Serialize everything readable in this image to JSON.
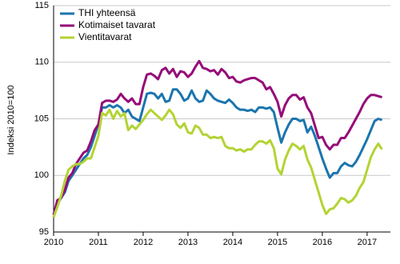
{
  "chart_data": {
    "type": "line",
    "ylabel": "Indeksi 2010=100",
    "x": [
      2010.0,
      2010.083,
      2010.167,
      2010.25,
      2010.333,
      2010.417,
      2010.5,
      2010.583,
      2010.667,
      2010.75,
      2010.833,
      2010.917,
      2011.0,
      2011.083,
      2011.167,
      2011.25,
      2011.333,
      2011.417,
      2011.5,
      2011.583,
      2011.667,
      2011.75,
      2011.833,
      2011.917,
      2012.0,
      2012.083,
      2012.167,
      2012.25,
      2012.333,
      2012.417,
      2012.5,
      2012.583,
      2012.667,
      2012.75,
      2012.833,
      2012.917,
      2013.0,
      2013.083,
      2013.167,
      2013.25,
      2013.333,
      2013.417,
      2013.5,
      2013.583,
      2013.667,
      2013.75,
      2013.833,
      2013.917,
      2014.0,
      2014.083,
      2014.167,
      2014.25,
      2014.333,
      2014.417,
      2014.5,
      2014.583,
      2014.667,
      2014.75,
      2014.833,
      2014.917,
      2015.0,
      2015.083,
      2015.167,
      2015.25,
      2015.333,
      2015.417,
      2015.5,
      2015.583,
      2015.667,
      2015.75,
      2015.833,
      2015.917,
      2016.0,
      2016.083,
      2016.167,
      2016.25,
      2016.333,
      2016.417,
      2016.5,
      2016.583,
      2016.667,
      2016.75,
      2016.833,
      2016.917,
      2017.0,
      2017.083,
      2017.167,
      2017.25,
      2017.333
    ],
    "series": [
      {
        "name": "THI yhteensä",
        "color": "#1b75ad",
        "values": [
          96.5,
          97.5,
          98,
          98.5,
          99.5,
          100,
          100.5,
          101,
          101.5,
          101.8,
          102.5,
          103.5,
          104.5,
          106,
          106,
          106.2,
          106,
          106.2,
          106,
          105.5,
          105.8,
          105.2,
          105,
          104.8,
          106,
          107.2,
          107.3,
          107.2,
          106.8,
          107.2,
          106.5,
          106.6,
          107.6,
          107.6,
          107.2,
          106.6,
          106.8,
          107.5,
          106.8,
          106.5,
          106.6,
          107.5,
          107.2,
          106.8,
          106.6,
          106.5,
          106.4,
          106.7,
          106.4,
          106,
          105.8,
          105.8,
          105.7,
          105.8,
          105.6,
          106,
          106,
          105.9,
          106,
          105.6,
          104.2,
          102.9,
          103.8,
          104.5,
          105,
          105,
          104.8,
          104.9,
          103.8,
          104.3,
          103.5,
          102.5,
          101.5,
          100.6,
          99.8,
          100.2,
          100.2,
          100.8,
          101.1,
          100.9,
          100.8,
          101.2,
          101.8,
          102.5,
          103.2,
          104,
          104.8,
          105,
          104.9
        ]
      },
      {
        "name": "Kotimaiset tavarat",
        "color": "#950c78",
        "values": [
          96.5,
          97.8,
          98,
          98.7,
          99.8,
          100.2,
          101,
          101.5,
          102,
          102.2,
          103,
          104,
          104.5,
          106.4,
          106.6,
          106.6,
          106.5,
          106.7,
          107.2,
          106.8,
          106.5,
          106.8,
          106.3,
          106.3,
          107.8,
          108.9,
          109,
          108.8,
          108.5,
          109.3,
          109.5,
          109,
          109.4,
          108.7,
          109.2,
          109.1,
          108.7,
          109,
          109.6,
          110.1,
          109.5,
          109.4,
          109.2,
          109.3,
          108.9,
          109.4,
          109.1,
          108.6,
          108.7,
          108.3,
          108.2,
          108.4,
          108.5,
          108.6,
          108.6,
          108.4,
          108.2,
          107.6,
          107.8,
          107.2,
          106.5,
          105.2,
          106.2,
          106.8,
          107.1,
          107.1,
          106.7,
          106.9,
          106,
          105.5,
          104.4,
          103.3,
          103.4,
          102.7,
          102.3,
          102.7,
          102.7,
          103.3,
          103.3,
          103.8,
          104.4,
          105,
          105.6,
          106.3,
          106.8,
          107.1,
          107.1,
          107,
          106.9
        ]
      },
      {
        "name": "Vientitavarat",
        "color": "#b3d334",
        "values": [
          96.3,
          97.2,
          98.2,
          99.5,
          100.5,
          100.8,
          101,
          101,
          101.2,
          101.5,
          101.5,
          102.5,
          103.5,
          105.5,
          105.3,
          105.8,
          105,
          105.7,
          105.2,
          105.5,
          104,
          104.4,
          104.1,
          104.5,
          104.9,
          105.4,
          105.8,
          105.5,
          105.2,
          104.9,
          105.3,
          105.8,
          105.4,
          104.5,
          104.2,
          104.6,
          103.8,
          103.7,
          104.4,
          104.2,
          103.6,
          103.6,
          103.3,
          103.4,
          103.3,
          103.4,
          102.6,
          102.4,
          102.4,
          102.2,
          102.3,
          102.1,
          102.3,
          102.3,
          102.7,
          103,
          103,
          102.8,
          103.1,
          102.4,
          100.6,
          100.1,
          101.4,
          102.2,
          102.8,
          102.6,
          102.3,
          102.6,
          101.4,
          100.7,
          99.6,
          98.5,
          97.4,
          96.6,
          97,
          97.1,
          97.5,
          98,
          97.9,
          97.6,
          97.8,
          98.2,
          98.9,
          99.4,
          100.5,
          101.6,
          102.3,
          102.8,
          102.3
        ]
      }
    ],
    "xlim": [
      2010,
      2017.52
    ],
    "xticks": [
      2010,
      2011,
      2012,
      2013,
      2014,
      2015,
      2016,
      2017
    ],
    "ylim": [
      95,
      115
    ],
    "yticks": [
      95,
      100,
      105,
      110,
      115
    ],
    "grid": true,
    "legend": "upper left"
  }
}
